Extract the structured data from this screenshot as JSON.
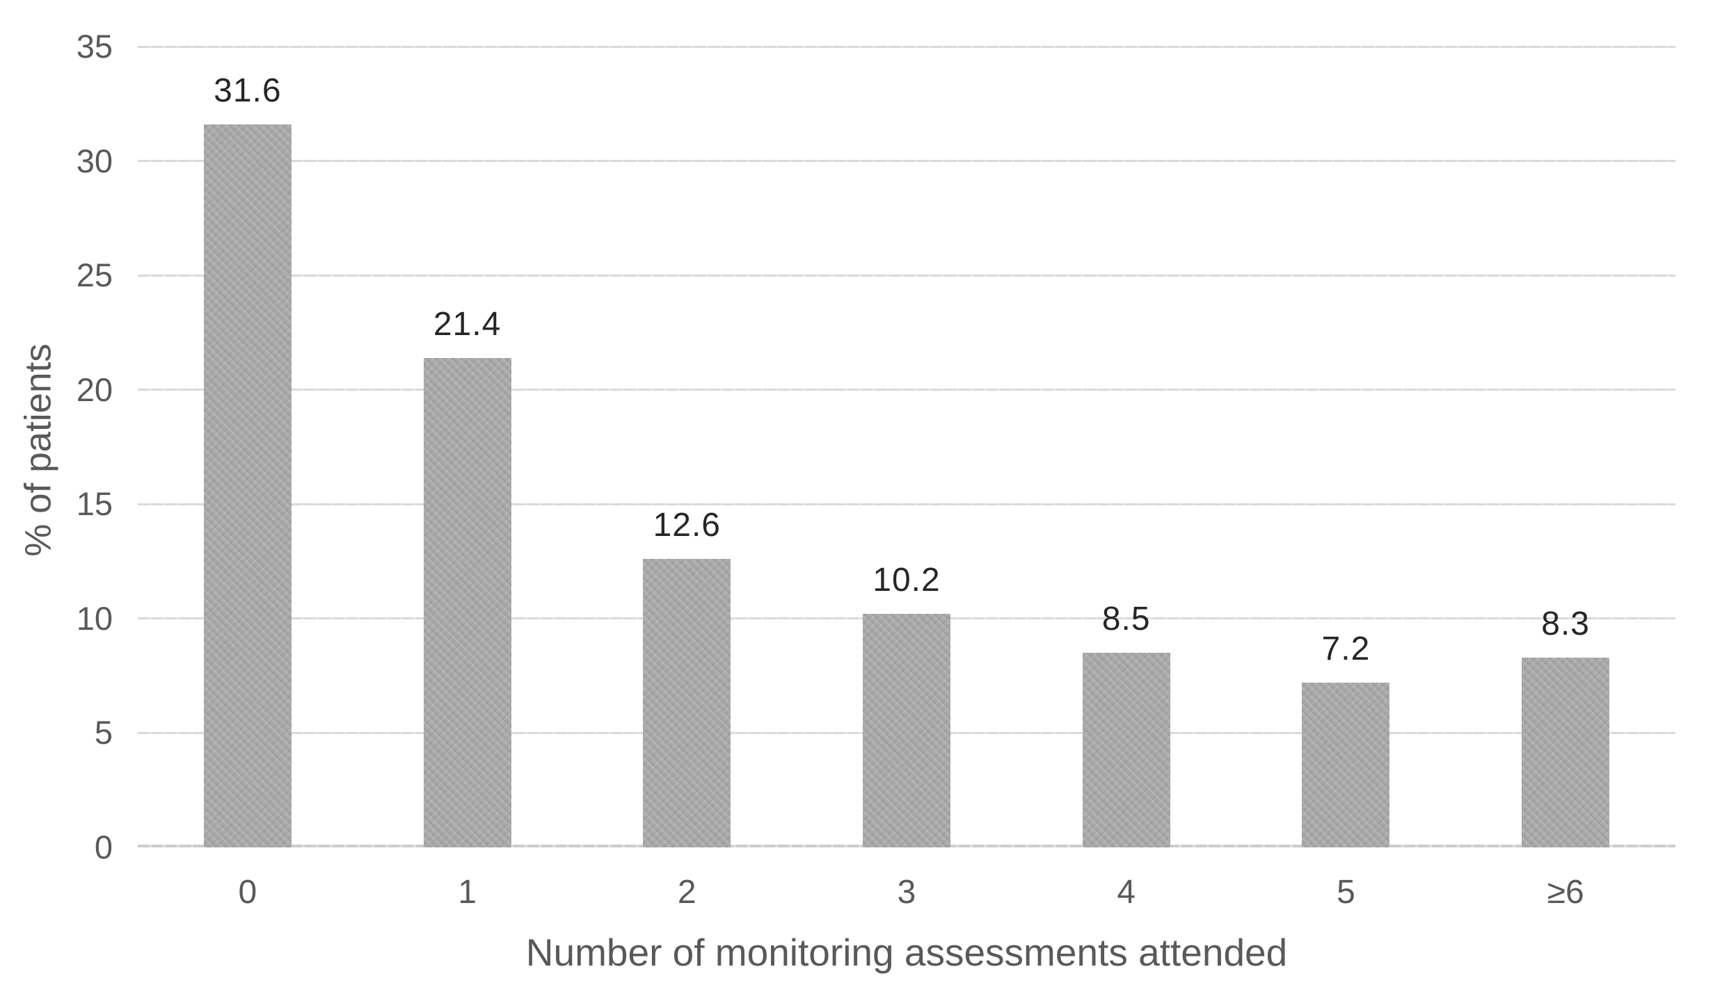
{
  "chart_data": {
    "type": "bar",
    "title": "",
    "categories": [
      "0",
      "1",
      "2",
      "3",
      "4",
      "5",
      "≥6"
    ],
    "values": [
      31.6,
      21.4,
      12.6,
      10.2,
      8.5,
      7.2,
      8.3
    ],
    "value_labels": [
      "31.6",
      "21.4",
      "12.6",
      "10.2",
      "8.5",
      "7.2",
      "8.3"
    ],
    "xlabel": "Number of monitoring assessments attended",
    "ylabel": "% of patients",
    "ylim": [
      0,
      35
    ],
    "yticks": [
      0,
      5,
      10,
      15,
      20,
      25,
      30,
      35
    ],
    "ytick_labels": [
      "0",
      "5",
      "10",
      "15",
      "20",
      "25",
      "30",
      "35"
    ],
    "grid": true,
    "legend": false,
    "colors": {
      "bar_fill": "#a9a9a9",
      "gridline": "#d9d9d9",
      "axis_line": "#cccccc",
      "tick_text": "#595959",
      "axis_title_text": "#595959",
      "data_label_text": "#262626",
      "background": "#ffffff"
    }
  }
}
